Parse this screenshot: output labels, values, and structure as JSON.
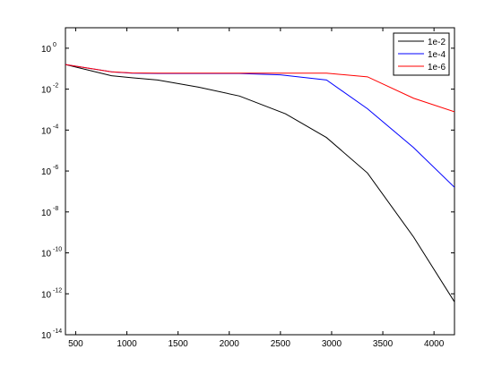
{
  "chart_data": {
    "type": "line",
    "title": "",
    "xlabel": "",
    "ylabel": "",
    "xlim": [
      400,
      4200
    ],
    "ylim": [
      1e-14,
      10
    ],
    "yscale": "log",
    "grid": false,
    "legend_position": "top-right",
    "x_ticks": [
      500,
      1000,
      1500,
      2000,
      2500,
      3000,
      3500,
      4000
    ],
    "x_tick_labels": [
      "500",
      "1000",
      "1500",
      "2000",
      "2500",
      "3000",
      "3500",
      "4000"
    ],
    "y_ticks": [
      1,
      0.01,
      0.0001,
      1e-06,
      1e-08,
      1e-10,
      1e-12,
      1e-14
    ],
    "y_tick_base": "10",
    "y_tick_exponents": [
      "0",
      "-2",
      "-4",
      "-6",
      "-8",
      "-10",
      "-12",
      "-14"
    ],
    "series": [
      {
        "name": "1e-2",
        "color": "#000000",
        "x": [
          400,
          850,
          1050,
          1300,
          1700,
          2100,
          2550,
          2950,
          3350,
          3800,
          4200
        ],
        "y": [
          0.16,
          0.045,
          0.036,
          0.028,
          0.0125,
          0.0046,
          0.00062,
          4.3e-05,
          8e-07,
          6e-10,
          4e-13
        ]
      },
      {
        "name": "1e-4",
        "color": "#0000ff",
        "x": [
          400,
          850,
          1050,
          1300,
          1700,
          2100,
          2500,
          2950,
          3350,
          3800,
          4200
        ],
        "y": [
          0.16,
          0.07,
          0.06,
          0.058,
          0.058,
          0.058,
          0.05,
          0.028,
          0.0011,
          1.4e-05,
          1.6e-07
        ]
      },
      {
        "name": "1e-6",
        "color": "#ff0000",
        "x": [
          400,
          850,
          1050,
          1300,
          1700,
          2100,
          2500,
          2950,
          3350,
          3800,
          4200
        ],
        "y": [
          0.16,
          0.07,
          0.062,
          0.06,
          0.06,
          0.06,
          0.06,
          0.06,
          0.04,
          0.0036,
          0.00078
        ]
      }
    ]
  }
}
